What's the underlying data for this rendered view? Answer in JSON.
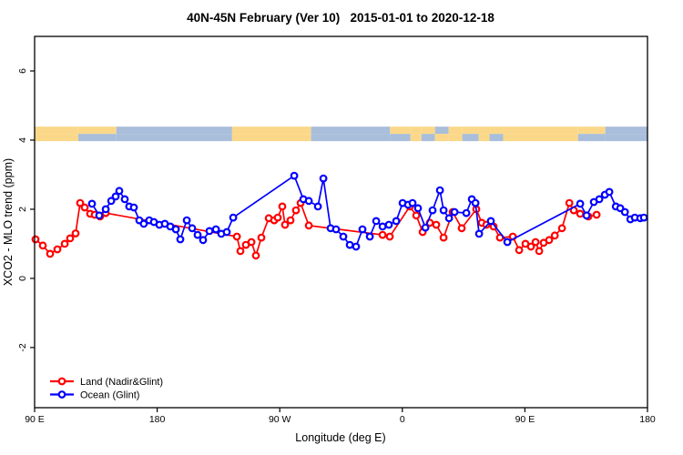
{
  "window": {
    "title": "40N-45N February (Ver 10)   2015-01-01 to 2020-12-18"
  },
  "chart_data": {
    "type": "line",
    "title": "40N-45N February (Ver 10)   2015-01-01 to 2020-12-18",
    "xlabel": "Longitude (deg E)",
    "ylabel": "XCO2 - MLO trend (ppm)",
    "xlim": [
      90,
      540
    ],
    "ylim": [
      -3.74,
      7.0
    ],
    "grid": false,
    "x_ticks": [
      {
        "value": 90,
        "label": "90 E"
      },
      {
        "value": 180,
        "label": "180"
      },
      {
        "value": 270,
        "label": "90 W"
      },
      {
        "value": 360,
        "label": "0"
      },
      {
        "value": 450,
        "label": "90 E"
      },
      {
        "value": 540,
        "label": "180"
      }
    ],
    "y_ticks": [
      {
        "value": -2,
        "label": "-2"
      },
      {
        "value": 0,
        "label": "0"
      },
      {
        "value": 2,
        "label": "2"
      },
      {
        "value": 4,
        "label": "4"
      },
      {
        "value": 6,
        "label": "6"
      }
    ],
    "legend": {
      "position": "bottom-left",
      "entries": [
        {
          "label": "Land (Nadir&Glint)",
          "color": "#ff0000"
        },
        {
          "label": "Ocean (Glint)",
          "color": "#0000ff"
        }
      ]
    },
    "map_band": {
      "y_range": [
        3.97,
        4.39
      ],
      "land_color": "#fbd889",
      "ocean_color": "#a9bedb",
      "segments": [
        {
          "from": 90,
          "to": 122,
          "top": "land",
          "bottom": "land"
        },
        {
          "from": 122,
          "to": 150,
          "top": "land",
          "bottom": "ocean"
        },
        {
          "from": 150,
          "to": 235,
          "top": "ocean",
          "bottom": "ocean"
        },
        {
          "from": 235,
          "to": 293,
          "top": "land",
          "bottom": "land"
        },
        {
          "from": 293,
          "to": 351,
          "top": "ocean",
          "bottom": "ocean"
        },
        {
          "from": 351,
          "to": 366,
          "top": "land",
          "bottom": "ocean"
        },
        {
          "from": 366,
          "to": 374,
          "top": "land",
          "bottom": "land"
        },
        {
          "from": 374,
          "to": 384,
          "top": "land",
          "bottom": "ocean"
        },
        {
          "from": 384,
          "to": 394,
          "top": "ocean",
          "bottom": "land"
        },
        {
          "from": 394,
          "to": 404,
          "top": "land",
          "bottom": "land"
        },
        {
          "from": 404,
          "to": 416,
          "top": "land",
          "bottom": "ocean"
        },
        {
          "from": 416,
          "to": 424,
          "top": "land",
          "bottom": "land"
        },
        {
          "from": 424,
          "to": 434,
          "top": "land",
          "bottom": "ocean"
        },
        {
          "from": 434,
          "to": 489,
          "top": "land",
          "bottom": "land"
        },
        {
          "from": 489,
          "to": 509,
          "top": "land",
          "bottom": "ocean"
        },
        {
          "from": 509,
          "to": 540,
          "top": "ocean",
          "bottom": "ocean"
        }
      ]
    },
    "series": [
      {
        "name": "Land (Nadir&Glint)",
        "color": "#ff0000",
        "points": [
          [
            90.7,
            1.13
          ],
          [
            96.0,
            0.95
          ],
          [
            101.4,
            0.71
          ],
          [
            106.7,
            0.84
          ],
          [
            112.1,
            1.0
          ],
          [
            116.1,
            1.16
          ],
          [
            120.1,
            1.3
          ],
          [
            123.4,
            2.18
          ],
          [
            126.8,
            2.05
          ],
          [
            130.8,
            1.87
          ],
          [
            134.1,
            1.84
          ],
          [
            138.1,
            1.79
          ],
          [
            142.2,
            1.89
          ],
          [
            238.5,
            1.21
          ],
          [
            241.1,
            0.79
          ],
          [
            245.1,
            0.97
          ],
          [
            249.2,
            1.05
          ],
          [
            252.5,
            0.66
          ],
          [
            256.5,
            1.18
          ],
          [
            261.9,
            1.74
          ],
          [
            265.9,
            1.68
          ],
          [
            268.5,
            1.76
          ],
          [
            271.9,
            2.08
          ],
          [
            273.9,
            1.55
          ],
          [
            277.9,
            1.68
          ],
          [
            281.9,
            1.97
          ],
          [
            285.3,
            2.18
          ],
          [
            291.3,
            1.53
          ],
          [
            345.5,
            1.26
          ],
          [
            350.8,
            1.21
          ],
          [
            365.5,
            2.08
          ],
          [
            370.2,
            1.82
          ],
          [
            374.9,
            1.34
          ],
          [
            380.2,
            1.61
          ],
          [
            384.9,
            1.55
          ],
          [
            390.3,
            1.18
          ],
          [
            397.0,
            1.92
          ],
          [
            403.6,
            1.45
          ],
          [
            414.3,
            2.0
          ],
          [
            418.3,
            1.61
          ],
          [
            421.7,
            1.55
          ],
          [
            427.0,
            1.5
          ],
          [
            431.7,
            1.18
          ],
          [
            441.1,
            1.21
          ],
          [
            445.8,
            0.82
          ],
          [
            450.4,
            1.0
          ],
          [
            454.4,
            0.92
          ],
          [
            457.8,
            1.05
          ],
          [
            460.5,
            0.79
          ],
          [
            463.8,
            1.03
          ],
          [
            467.8,
            1.11
          ],
          [
            471.9,
            1.24
          ],
          [
            477.2,
            1.45
          ],
          [
            482.6,
            2.18
          ],
          [
            485.9,
            1.97
          ],
          [
            490.6,
            1.87
          ],
          [
            496.6,
            1.79
          ],
          [
            502.6,
            1.84
          ]
        ]
      },
      {
        "name": "Ocean (Glint)",
        "color": "#0000ff",
        "points": [
          [
            132.1,
            2.16
          ],
          [
            137.5,
            1.82
          ],
          [
            142.2,
            2.0
          ],
          [
            146.2,
            2.24
          ],
          [
            149.5,
            2.37
          ],
          [
            152.2,
            2.53
          ],
          [
            156.2,
            2.29
          ],
          [
            159.5,
            2.08
          ],
          [
            162.9,
            2.05
          ],
          [
            166.9,
            1.68
          ],
          [
            170.2,
            1.58
          ],
          [
            174.2,
            1.68
          ],
          [
            177.6,
            1.63
          ],
          [
            181.6,
            1.55
          ],
          [
            185.6,
            1.58
          ],
          [
            189.6,
            1.5
          ],
          [
            193.7,
            1.42
          ],
          [
            197.0,
            1.13
          ],
          [
            201.7,
            1.68
          ],
          [
            205.7,
            1.45
          ],
          [
            209.7,
            1.26
          ],
          [
            213.7,
            1.11
          ],
          [
            218.4,
            1.37
          ],
          [
            223.1,
            1.42
          ],
          [
            227.1,
            1.29
          ],
          [
            231.1,
            1.34
          ],
          [
            235.8,
            1.76
          ],
          [
            280.6,
            2.97
          ],
          [
            287.3,
            2.29
          ],
          [
            291.3,
            2.24
          ],
          [
            298.0,
            2.08
          ],
          [
            302.0,
            2.89
          ],
          [
            307.3,
            1.45
          ],
          [
            311.3,
            1.42
          ],
          [
            316.7,
            1.21
          ],
          [
            321.4,
            0.97
          ],
          [
            326.0,
            0.92
          ],
          [
            330.7,
            1.42
          ],
          [
            336.1,
            1.21
          ],
          [
            340.8,
            1.66
          ],
          [
            345.5,
            1.5
          ],
          [
            350.1,
            1.55
          ],
          [
            355.5,
            1.66
          ],
          [
            360.2,
            2.18
          ],
          [
            364.2,
            2.13
          ],
          [
            367.5,
            2.18
          ],
          [
            371.5,
            2.03
          ],
          [
            376.9,
            1.47
          ],
          [
            382.2,
            1.97
          ],
          [
            387.6,
            2.55
          ],
          [
            390.3,
            1.97
          ],
          [
            394.3,
            1.74
          ],
          [
            398.3,
            1.92
          ],
          [
            407.0,
            1.89
          ],
          [
            411.0,
            2.29
          ],
          [
            413.7,
            2.18
          ],
          [
            416.4,
            1.29
          ],
          [
            425.0,
            1.66
          ],
          [
            437.1,
            1.05
          ],
          [
            490.6,
            2.16
          ],
          [
            495.3,
            1.82
          ],
          [
            500.6,
            2.21
          ],
          [
            504.6,
            2.29
          ],
          [
            508.7,
            2.42
          ],
          [
            512.0,
            2.5
          ],
          [
            516.7,
            2.08
          ],
          [
            520.0,
            2.03
          ],
          [
            523.4,
            1.92
          ],
          [
            527.4,
            1.71
          ],
          [
            530.7,
            1.76
          ],
          [
            534.7,
            1.74
          ],
          [
            537.4,
            1.76
          ]
        ]
      }
    ]
  }
}
